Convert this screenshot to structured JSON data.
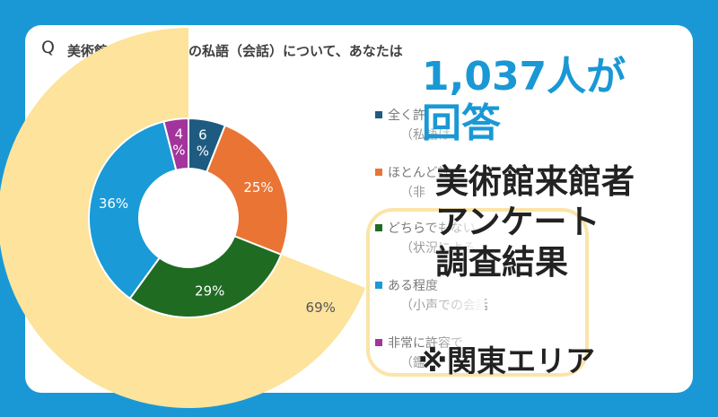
{
  "question": {
    "prefix": "Q",
    "text": "美術館の展示室内での私語（会話）について、あなたは"
  },
  "chart_data": {
    "type": "pie",
    "subtype": "nested-donut",
    "question": "美術館の展示室内での私語（会話）について、あなたは",
    "inner": [
      {
        "label": "全く許容できない",
        "value": 6,
        "text": "6%",
        "color": "#1e5b80"
      },
      {
        "label": "ほとんど許容できない",
        "value": 25,
        "text": "25%",
        "color": "#ea7434"
      },
      {
        "label": "どちらでもない",
        "value": 29,
        "text": "29%",
        "color": "#1f6b22"
      },
      {
        "label": "ある程度許容できる",
        "value": 36,
        "text": "36%",
        "color": "#1a9ad6"
      },
      {
        "label": "非常に許容できる",
        "value": 4,
        "text": "4%",
        "color": "#a2349c"
      }
    ],
    "outer": [
      {
        "label": "outer-highlight",
        "value": 69,
        "text": "69%",
        "color": "#fde39b"
      }
    ]
  },
  "legend": [
    {
      "main": "全く許",
      "sub": "（私語は",
      "color": "#1e5b80"
    },
    {
      "main": "ほとんど許",
      "sub": "（非",
      "color": "#ea7434"
    },
    {
      "main": "どちらでもない",
      "sub": "（状況による",
      "color": "#1f6b22"
    },
    {
      "main": "ある程度",
      "sub": "（小声での会話",
      "color": "#1a9ad6"
    },
    {
      "main": "非常に許容で",
      "sub": "（鑑",
      "color": "#a2349c"
    }
  ],
  "overlay": {
    "respondents": "1,037人が回答",
    "title_lines": [
      "美術館来館者",
      "アンケート",
      "調査結果"
    ],
    "note": "※関東エリア"
  }
}
